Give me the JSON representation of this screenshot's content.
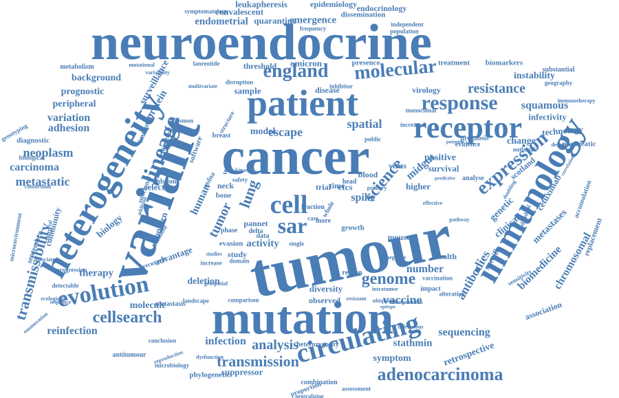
{
  "colors": {
    "word": "#4a7db5",
    "background": "#ffffff"
  },
  "words": [
    "neuroendocrine",
    "tumour",
    "cancer",
    "variant",
    "mutation",
    "patient",
    "heterogeneity",
    "immunology",
    "receptor",
    "circulating",
    "adenocarcinoma",
    "lineage",
    "cell",
    "sar",
    "response",
    "england",
    "molecular",
    "evolution",
    "expression",
    "genome",
    "transmission",
    "cellsearch",
    "analysis",
    "science",
    "escape",
    "spatial",
    "model",
    "transmissibility",
    "carcinoma",
    "metastatic",
    "neoplasm",
    "adhesion",
    "variation",
    "peripheral",
    "prognostic",
    "background",
    "surveillance",
    "protein",
    "tumor",
    "human",
    "lung",
    "spike",
    "midgut",
    "antibodies",
    "biomedicine",
    "metastases",
    "vaccine",
    "number",
    "sequencing",
    "stathmin",
    "retrospective",
    "symptom",
    "reinfection",
    "molecule",
    "therapy",
    "infection",
    "suppressor",
    "combination",
    "proportion",
    "phylogenetic",
    "resistance",
    "squamous",
    "instability",
    "infectivity",
    "technology",
    "pancreatic",
    "change",
    "positive",
    "survival",
    "clinical",
    "genetic",
    "scotland",
    "cetuximab",
    "chromosomal",
    "association",
    "replacement",
    "accumulation",
    "endometrial",
    "quarantine",
    "emergence",
    "convalescent",
    "leukapheresis",
    "epidemiology",
    "endocrinology",
    "dissemination",
    "omicron",
    "threshold",
    "presence",
    "treatment",
    "biomarkers",
    "substantial",
    "sample",
    "disease",
    "virology",
    "monoclonal",
    "prognosis",
    "evidence",
    "outbreak",
    "geography",
    "immunotherapy",
    "metabolism",
    "mutational",
    "variability",
    "lanreotide",
    "genotyping",
    "diagnostic",
    "biological",
    "consortium",
    "microenvironment",
    "community",
    "september",
    "colorectal",
    "associated",
    "sequence",
    "detectable",
    "progression",
    "ecological",
    "enumeration",
    "antitumour",
    "microbiology",
    "reproduction",
    "dysfunction",
    "conclusion",
    "metastasis",
    "landscape",
    "comparison",
    "observed",
    "diversity",
    "region",
    "impact",
    "alteration",
    "resistant",
    "intratumor",
    "assessment",
    "neutralizing",
    "heterozygosity",
    "deletion",
    "evasion",
    "activity",
    "study",
    "pannet",
    "data",
    "delta",
    "neck",
    "bone",
    "ctdna",
    "fraction",
    "trial",
    "time",
    "ctcs",
    "blood",
    "head",
    "virus",
    "higher",
    "mouse",
    "health",
    "specific",
    "individual",
    "subclonal",
    "selection",
    "biology",
    "concern",
    "method",
    "advantage",
    "recurrent",
    "subclone",
    "immunity",
    "targeted",
    "plasmon",
    "software",
    "breast",
    "structure",
    "public",
    "increased",
    "whole",
    "case",
    "growth",
    "more",
    "single",
    "phase",
    "testing",
    "safety",
    "addition",
    "frequency",
    "independent",
    "population",
    "symptomatology",
    "multivariate",
    "disruption",
    "sensitivity",
    "vaccination",
    "ubiquitous",
    "incorporation",
    "deleterious",
    "epitope",
    "inhibitor",
    "analyse",
    "doubling",
    "predictive",
    "pathway",
    "potential",
    "december",
    "correlation",
    "domain",
    "increase",
    "studies",
    "geospatial",
    "primary",
    "kinase",
    "effective",
    "negative"
  ]
}
